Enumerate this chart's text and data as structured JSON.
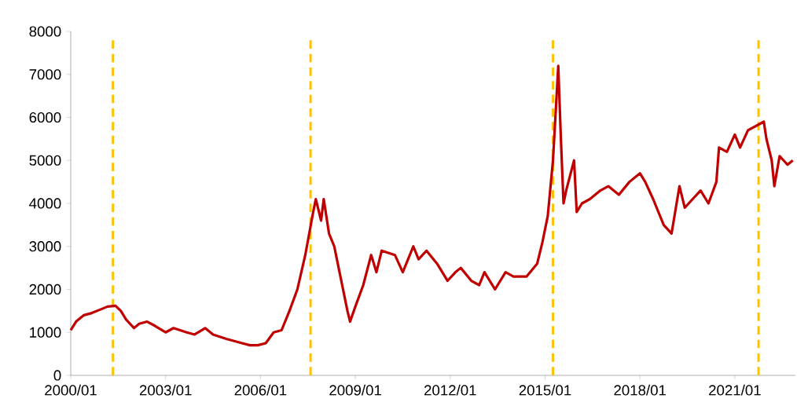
{
  "chart_data": {
    "type": "line",
    "color": "#c00000",
    "x": [
      "2000-01",
      "2000-03",
      "2000-06",
      "2000-09",
      "2001-01",
      "2001-03",
      "2001-06",
      "2001-08",
      "2001-10",
      "2002-01",
      "2002-03",
      "2002-06",
      "2002-09",
      "2003-01",
      "2003-04",
      "2003-09",
      "2003-12",
      "2004-04",
      "2004-07",
      "2004-12",
      "2005-06",
      "2005-09",
      "2005-12",
      "2006-03",
      "2006-06",
      "2006-09",
      "2006-12",
      "2007-03",
      "2007-06",
      "2007-09",
      "2007-10",
      "2007-12",
      "2008-01",
      "2008-03",
      "2008-05",
      "2008-07",
      "2008-10",
      "2008-11",
      "2009-01",
      "2009-04",
      "2009-07",
      "2009-09",
      "2009-11",
      "2010-04",
      "2010-07",
      "2010-11",
      "2011-01",
      "2011-04",
      "2011-08",
      "2011-12",
      "2012-03",
      "2012-05",
      "2012-09",
      "2012-12",
      "2013-02",
      "2013-06",
      "2013-10",
      "2014-01",
      "2014-06",
      "2014-10",
      "2014-12",
      "2015-02",
      "2015-04",
      "2015-06",
      "2015-07",
      "2015-08",
      "2015-09",
      "2015-12",
      "2016-01",
      "2016-03",
      "2016-06",
      "2016-10",
      "2017-01",
      "2017-05",
      "2017-09",
      "2018-01",
      "2018-03",
      "2018-06",
      "2018-10",
      "2019-01",
      "2019-04",
      "2019-06",
      "2019-09",
      "2019-12",
      "2020-02",
      "2020-03",
      "2020-06",
      "2020-07",
      "2020-10",
      "2021-01",
      "2021-03",
      "2021-06",
      "2021-09",
      "2021-12",
      "2022-01",
      "2022-03",
      "2022-04",
      "2022-06",
      "2022-09",
      "2022-11"
    ],
    "values": [
      1050,
      1250,
      1400,
      1450,
      1550,
      1600,
      1620,
      1500,
      1300,
      1100,
      1200,
      1250,
      1150,
      1000,
      1100,
      1000,
      950,
      1100,
      950,
      850,
      750,
      700,
      700,
      750,
      1000,
      1050,
      1500,
      2000,
      2800,
      3800,
      4100,
      3600,
      4100,
      3300,
      3000,
      2400,
      1500,
      1250,
      1600,
      2100,
      2800,
      2400,
      2900,
      2800,
      2400,
      3000,
      2700,
      2900,
      2600,
      2200,
      2400,
      2500,
      2200,
      2100,
      2400,
      2000,
      2400,
      2300,
      2300,
      2600,
      3100,
      3700,
      5000,
      7200,
      5500,
      4000,
      4300,
      5000,
      3800,
      4000,
      4100,
      4300,
      4400,
      4200,
      4500,
      4700,
      4500,
      4100,
      3500,
      3300,
      4400,
      3900,
      4100,
      4300,
      4100,
      4000,
      4500,
      5300,
      5200,
      5600,
      5300,
      5700,
      5800,
      5900,
      5500,
      5000,
      4400,
      5100,
      4900,
      5000
    ],
    "xlim": [
      "2000-01",
      "2022-12"
    ],
    "xticks": [
      {
        "value": "2000-01",
        "label": "2000/01"
      },
      {
        "value": "2003-01",
        "label": "2003/01"
      },
      {
        "value": "2006-01",
        "label": "2006/01"
      },
      {
        "value": "2009-01",
        "label": "2009/01"
      },
      {
        "value": "2012-01",
        "label": "2012/01"
      },
      {
        "value": "2015-01",
        "label": "2015/01"
      },
      {
        "value": "2018-01",
        "label": "2018/01"
      },
      {
        "value": "2021-01",
        "label": "2021/01"
      }
    ],
    "ylim": [
      0,
      8000
    ],
    "yticks": [
      0,
      1000,
      2000,
      3000,
      4000,
      5000,
      6000,
      7000,
      8000
    ],
    "ref_lines": [
      {
        "axis": "x",
        "value": "2001-05",
        "color": "#ffc000",
        "line_style": "dashed"
      },
      {
        "axis": "x",
        "value": "2007-08",
        "color": "#ffc000",
        "line_style": "dashed"
      },
      {
        "axis": "x",
        "value": "2015-04",
        "color": "#ffc000",
        "line_style": "dashed"
      },
      {
        "axis": "x",
        "value": "2021-10",
        "color": "#ffc000",
        "line_style": "dashed"
      }
    ]
  }
}
